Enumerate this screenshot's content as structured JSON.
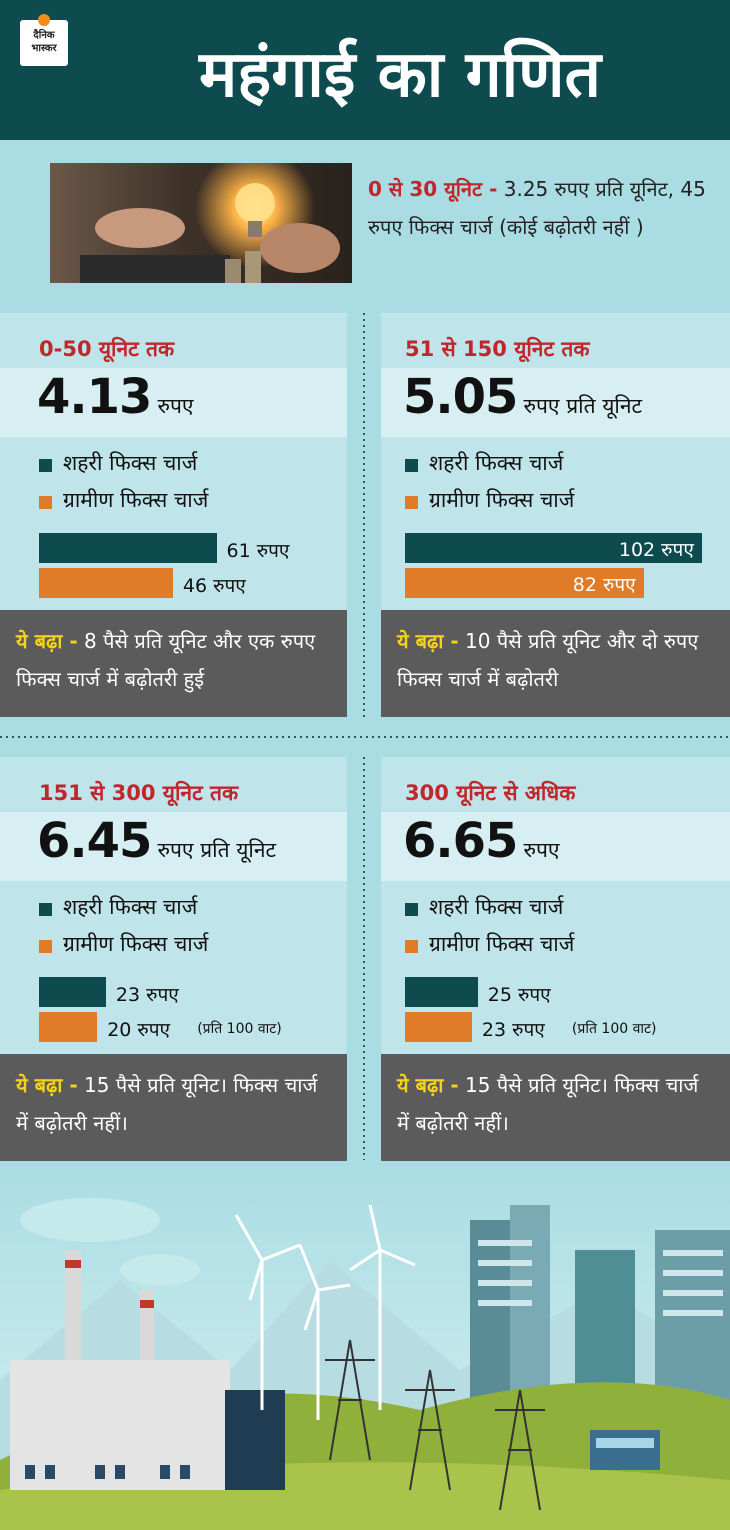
{
  "header": {
    "logo_line1": "दैनिक",
    "logo_line2": "भास्कर",
    "title": "महंगाई का गणित"
  },
  "intro": {
    "highlight": "0 से 30 यूनिट -",
    "text": "3.25 रुपए प्रति यूनिट, 45 रुपए फिक्स चार्ज (कोई बढ़ोतरी नहीं )"
  },
  "panels": [
    {
      "heading": "0-50 यूनिट तक",
      "rate": "4.13",
      "rate_unit": "रुपए",
      "chart_data": {
        "type": "bar",
        "series": [
          {
            "name": "शहरी फिक्स चार्ज",
            "color": "#0d4b4f",
            "values": [
              61
            ],
            "value_labels": [
              "61 रुपए"
            ]
          },
          {
            "name": "ग्रामीण फिक्स चार्ज",
            "color": "#e07b28",
            "values": [
              46
            ],
            "value_labels": [
              "46 रुपए"
            ]
          }
        ]
      },
      "note": {
        "highlight": "ये बढ़ा -",
        "text": "8 पैसे प्रति यूनिट और एक रुपए फिक्स चार्ज में बढ़ोतरी हुई"
      }
    },
    {
      "heading": "51 से 150 यूनिट तक",
      "rate": "5.05",
      "rate_unit": "रुपए प्रति यूनिट",
      "chart_data": {
        "type": "bar",
        "series": [
          {
            "name": "शहरी फिक्स चार्ज",
            "color": "#0d4b4f",
            "values": [
              102
            ],
            "value_labels": [
              "102 रुपए"
            ]
          },
          {
            "name": "ग्रामीण फिक्स चार्ज",
            "color": "#e07b28",
            "values": [
              82
            ],
            "value_labels": [
              "82 रुपए"
            ]
          }
        ]
      },
      "note": {
        "highlight": "ये बढ़ा -",
        "text": "10 पैसे प्रति यूनिट और दो रुपए फिक्स चार्ज में बढ़ोतरी"
      }
    },
    {
      "heading": "151 से 300 यूनिट तक",
      "rate": "6.45",
      "rate_unit": "रुपए प्रति यूनिट",
      "chart_data": {
        "type": "bar",
        "series": [
          {
            "name": "शहरी फिक्स चार्ज",
            "color": "#0d4b4f",
            "values": [
              23
            ],
            "value_labels": [
              "23 रुपए"
            ]
          },
          {
            "name": "ग्रामीण फिक्स चार्ज",
            "color": "#e07b28",
            "values": [
              20
            ],
            "value_labels": [
              "20 रुपए"
            ]
          }
        ],
        "unit_note": "(प्रति 100 वाट)"
      },
      "note": {
        "highlight": "ये बढ़ा -",
        "text": "15 पैसे प्रति यूनिट। फिक्स चार्ज में बढ़ोतरी नहीं।"
      }
    },
    {
      "heading": "300 यूनिट से अधिक",
      "rate": "6.65",
      "rate_unit": "रुपए",
      "chart_data": {
        "type": "bar",
        "series": [
          {
            "name": "शहरी फिक्स चार्ज",
            "color": "#0d4b4f",
            "values": [
              25
            ],
            "value_labels": [
              "25 रुपए"
            ]
          },
          {
            "name": "ग्रामीण फिक्स चार्ज",
            "color": "#e07b28",
            "values": [
              23
            ],
            "value_labels": [
              "23 रुपए"
            ]
          }
        ],
        "unit_note": "(प्रति 100 वाट)"
      },
      "note": {
        "highlight": "ये बढ़ा -",
        "text": "15 पैसे प्रति यूनिट। फिक्स चार्ज में बढ़ोतरी नहीं।"
      }
    }
  ]
}
